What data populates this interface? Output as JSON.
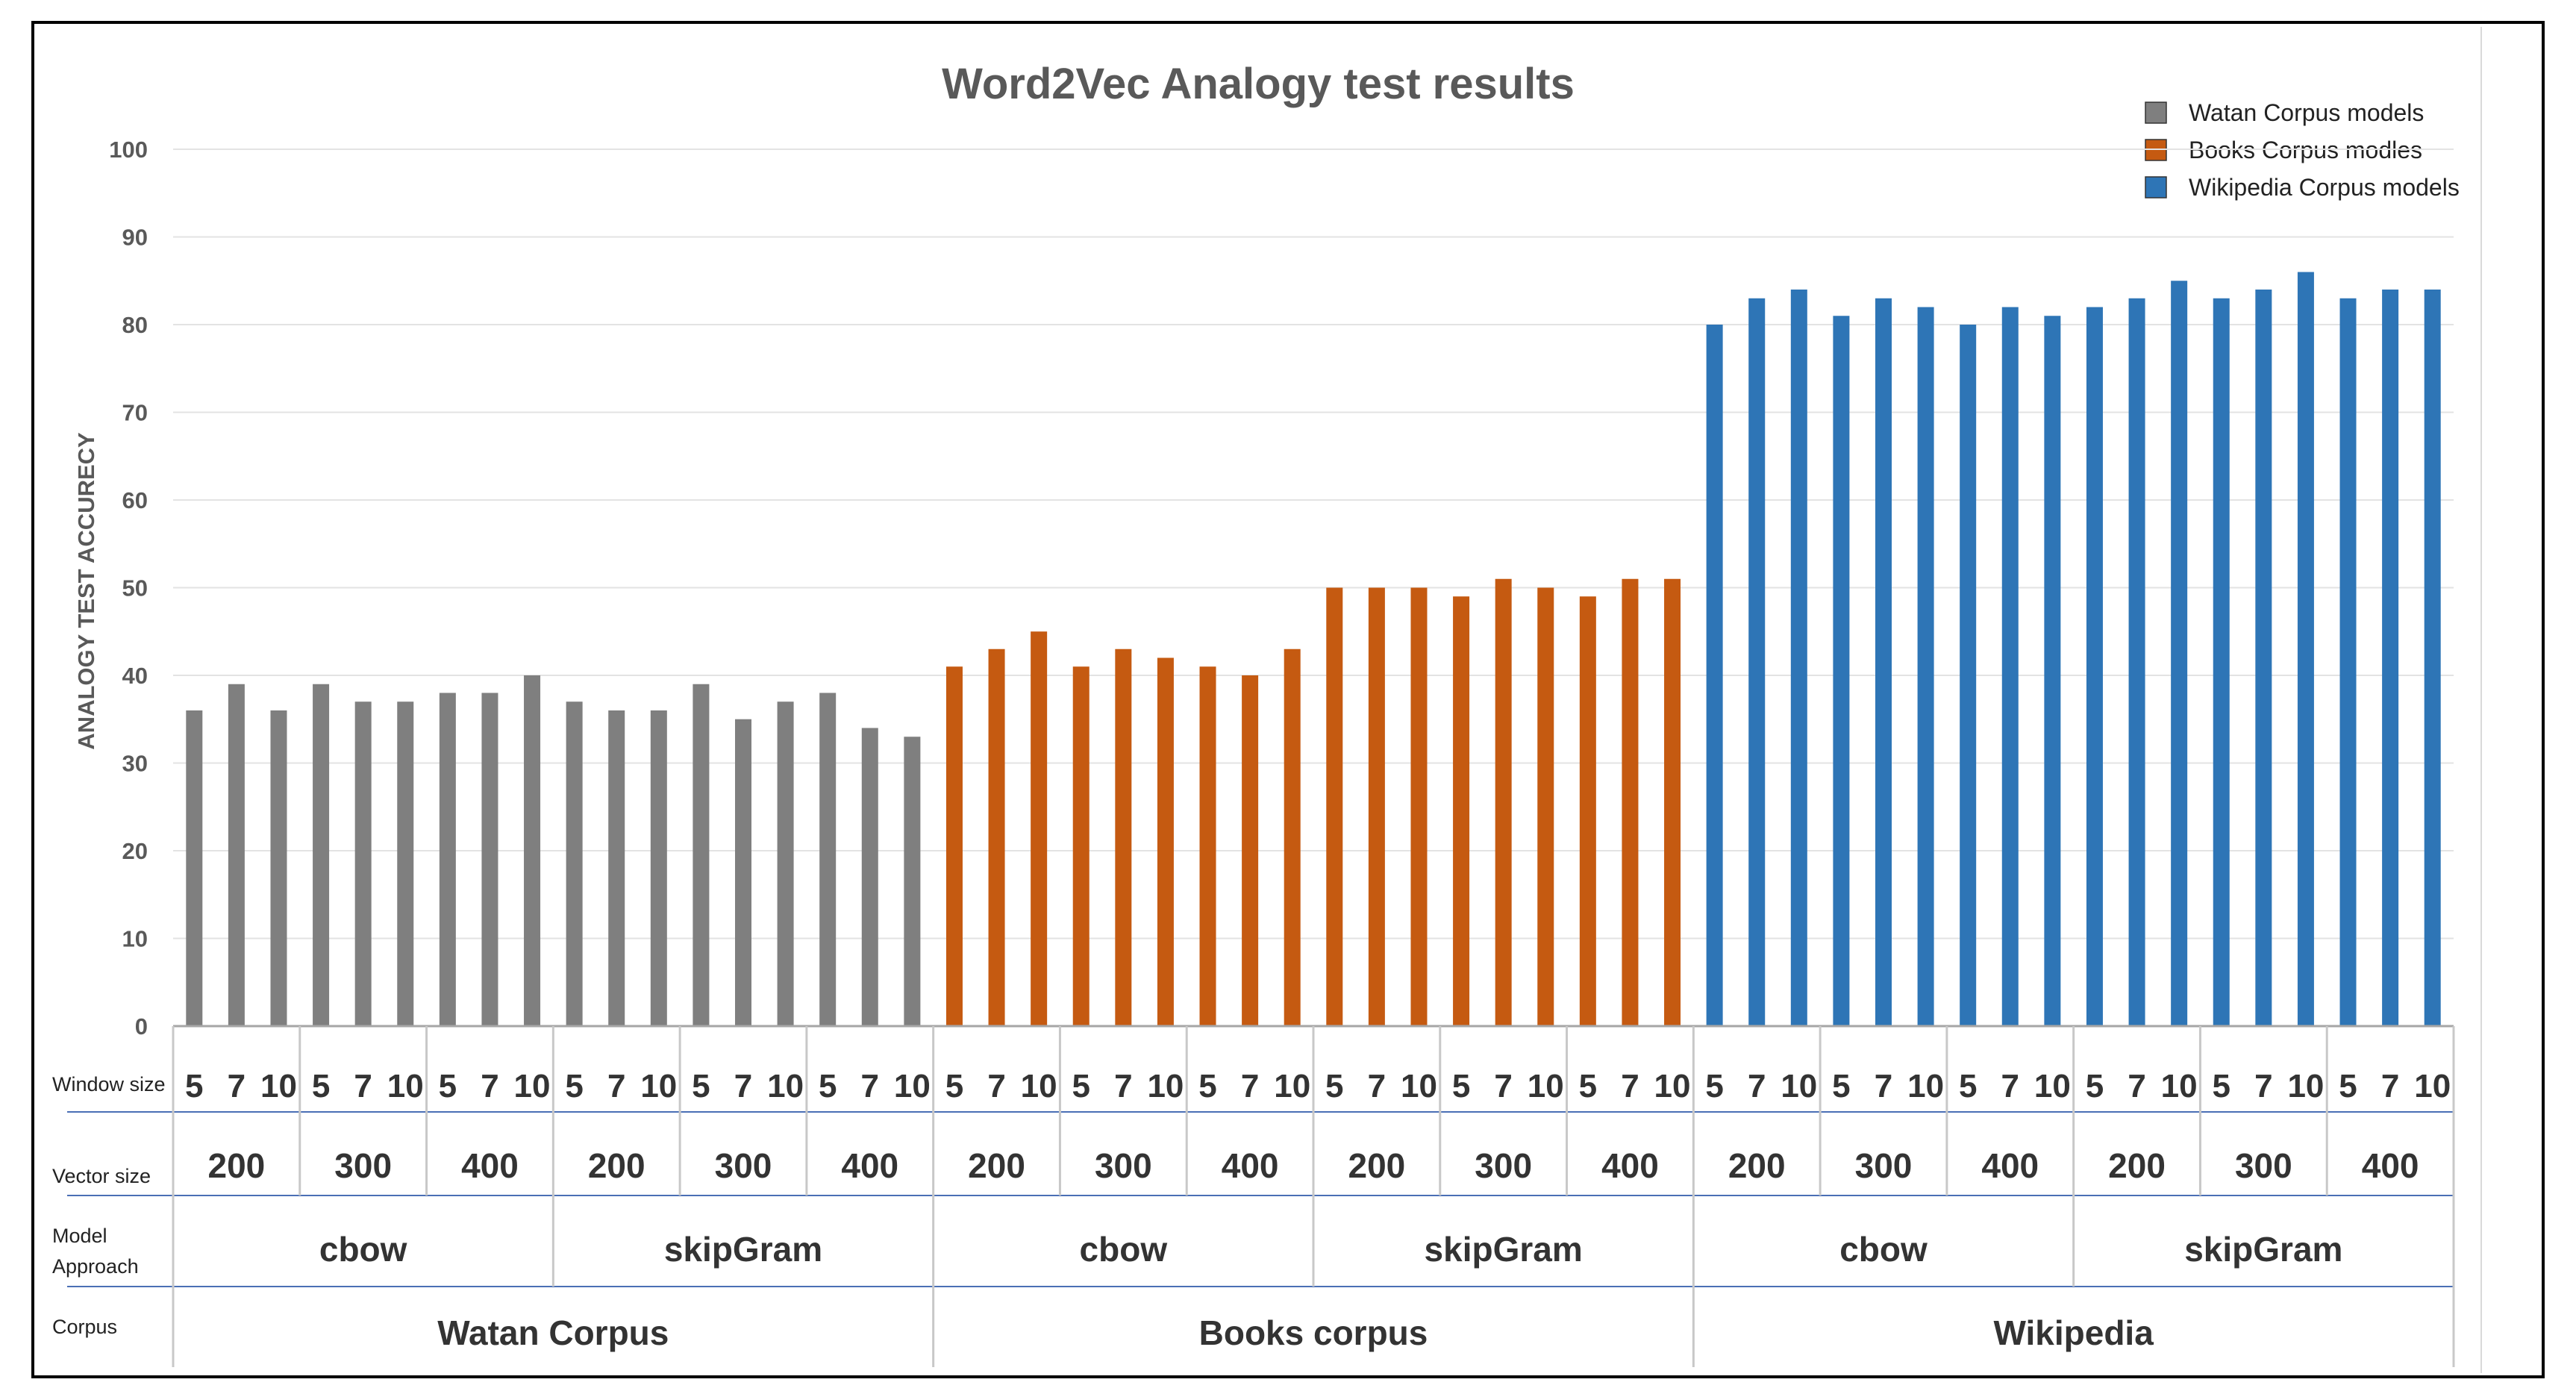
{
  "chart_data": {
    "type": "bar",
    "title": "Word2Vec Analogy test results",
    "ylabel": "ANALOGY TEST ACCURECY",
    "xlabel": "",
    "ylim": [
      0,
      100
    ],
    "yticks": [
      0,
      10,
      20,
      30,
      40,
      50,
      60,
      70,
      80,
      90,
      100
    ],
    "grid": true,
    "legend_position": "top-right",
    "series": [
      {
        "name": "Watan Corpus models",
        "color": "#7f7f7f",
        "values": [
          36,
          39,
          36,
          39,
          37,
          37,
          38,
          38,
          40,
          37,
          36,
          36,
          39,
          35,
          37,
          38,
          34,
          33
        ]
      },
      {
        "name": "Books Corpus modles",
        "color": "#c55a11",
        "values": [
          41,
          43,
          45,
          41,
          43,
          42,
          41,
          40,
          43,
          50,
          50,
          50,
          49,
          51,
          50,
          49,
          51,
          51
        ]
      },
      {
        "name": "Wikipedia Corpus models",
        "color": "#2e75b6",
        "values": [
          80,
          83,
          84,
          81,
          83,
          82,
          80,
          82,
          81,
          82,
          83,
          85,
          83,
          84,
          86,
          83,
          84,
          84
        ]
      }
    ],
    "category_axis": {
      "row_labels": {
        "window": "Window size",
        "vector": "Vector size",
        "model_line1": "Model",
        "model_line2": "Approach",
        "corpus": "Corpus"
      },
      "window_sizes": [
        "5",
        "7",
        "10"
      ],
      "vector_sizes": [
        "200",
        "300",
        "400"
      ],
      "model_approaches": [
        "cbow",
        "skipGram"
      ],
      "corpora": [
        "Watan Corpus",
        "Books corpus",
        "Wikipedia"
      ]
    }
  }
}
